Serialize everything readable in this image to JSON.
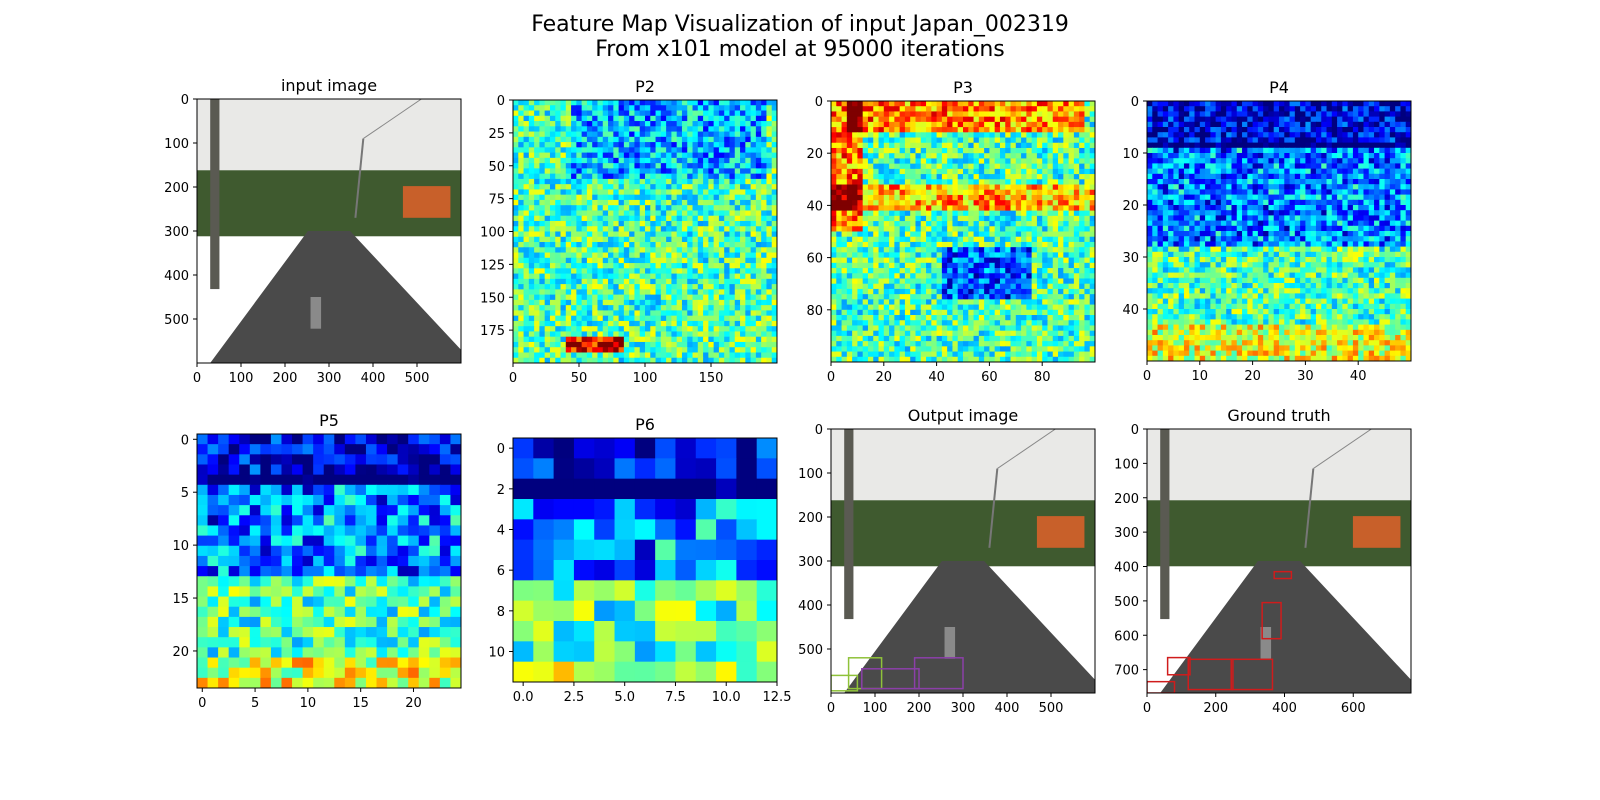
{
  "figure": {
    "title_line1": "Feature Map Visualization of input Japan_002319",
    "title_line2": "From x101 model at 95000 iterations"
  },
  "colors": {
    "jet": [
      "#00007f",
      "#0000ff",
      "#007fff",
      "#00ffff",
      "#7fff7f",
      "#ffff00",
      "#ff7f00",
      "#ff0000",
      "#7f0000"
    ],
    "sky": "#e9e9e7",
    "hill": "#3f5a2f",
    "road": "#4a4a4a",
    "house": "#c8602a",
    "box_green": "#8fc23a",
    "box_purple": "#8b3fa8",
    "box_red": "#d01c1c"
  },
  "chart_data": [
    {
      "id": "input",
      "type": "image",
      "title": "input image",
      "image_desc": "road photo",
      "xlim": [
        0,
        600
      ],
      "ylim": [
        600,
        0
      ],
      "xticks": [
        0,
        100,
        200,
        300,
        400,
        500
      ],
      "yticks": [
        0,
        100,
        200,
        300,
        400,
        500
      ]
    },
    {
      "id": "p2",
      "type": "heatmap",
      "title": "P2",
      "grid": 50,
      "xlim": [
        0,
        200
      ],
      "ylim": [
        200,
        0
      ],
      "xticks": [
        0,
        50,
        100,
        150
      ],
      "yticks": [
        0,
        25,
        50,
        75,
        100,
        125,
        150,
        175
      ],
      "seed": 2
    },
    {
      "id": "p3",
      "type": "heatmap",
      "title": "P3",
      "grid": 50,
      "xlim": [
        0,
        100
      ],
      "ylim": [
        100,
        0
      ],
      "xticks": [
        0,
        20,
        40,
        60,
        80
      ],
      "yticks": [
        0,
        20,
        40,
        60,
        80
      ],
      "seed": 3
    },
    {
      "id": "p4",
      "type": "heatmap",
      "title": "P4",
      "grid": 50,
      "xlim": [
        0,
        50
      ],
      "ylim": [
        50,
        0
      ],
      "xticks": [
        0,
        10,
        20,
        30,
        40
      ],
      "yticks": [
        0,
        10,
        20,
        30,
        40
      ],
      "seed": 4
    },
    {
      "id": "p5",
      "type": "heatmap",
      "title": "P5",
      "grid": 25,
      "xlim": [
        -0.5,
        24.5
      ],
      "ylim": [
        23.5,
        -0.5
      ],
      "xticks": [
        0,
        5,
        10,
        15,
        20
      ],
      "yticks": [
        0,
        5,
        10,
        15,
        20
      ],
      "seed": 5
    },
    {
      "id": "p6",
      "type": "heatmap",
      "title": "P6",
      "grid": 13,
      "rows": 12,
      "xlim": [
        -0.5,
        12.5
      ],
      "ylim": [
        11.5,
        -0.5
      ],
      "xticks": [
        0.0,
        2.5,
        5.0,
        7.5,
        10.0,
        12.5
      ],
      "xtick_labels": [
        "0.0",
        "2.5",
        "5.0",
        "7.5",
        "10.0",
        "12.5"
      ],
      "yticks": [
        0,
        2,
        4,
        6,
        8,
        10
      ],
      "seed": 6
    },
    {
      "id": "output",
      "type": "image",
      "title": "Output image",
      "image_desc": "road photo with predicted boxes",
      "xlim": [
        0,
        600
      ],
      "ylim": [
        600,
        0
      ],
      "xticks": [
        0,
        100,
        200,
        300,
        400,
        500
      ],
      "yticks": [
        0,
        100,
        200,
        300,
        400,
        500
      ],
      "boxes": [
        {
          "x0": 40,
          "y0": 520,
          "x1": 115,
          "y1": 590,
          "color": "box_green"
        },
        {
          "x0": 70,
          "y0": 545,
          "x1": 200,
          "y1": 590,
          "color": "box_purple"
        },
        {
          "x0": 190,
          "y0": 520,
          "x1": 300,
          "y1": 590,
          "color": "box_purple"
        },
        {
          "x0": 0,
          "y0": 560,
          "x1": 60,
          "y1": 595,
          "color": "box_green"
        }
      ]
    },
    {
      "id": "gt",
      "type": "image",
      "title": "Ground truth",
      "image_desc": "road photo with ground truth boxes",
      "xlim": [
        0,
        768
      ],
      "ylim": [
        768,
        0
      ],
      "xticks": [
        0,
        200,
        400,
        600
      ],
      "yticks": [
        100,
        200,
        300,
        400,
        500,
        600,
        700
      ],
      "yticks_zero": true,
      "boxes": [
        {
          "x0": 370,
          "y0": 415,
          "x1": 420,
          "y1": 435,
          "color": "box_red"
        },
        {
          "x0": 335,
          "y0": 505,
          "x1": 390,
          "y1": 610,
          "color": "box_red"
        },
        {
          "x0": 60,
          "y0": 665,
          "x1": 125,
          "y1": 715,
          "color": "box_red"
        },
        {
          "x0": 120,
          "y0": 670,
          "x1": 250,
          "y1": 758,
          "color": "box_red"
        },
        {
          "x0": 245,
          "y0": 670,
          "x1": 365,
          "y1": 758,
          "color": "box_red"
        },
        {
          "x0": 0,
          "y0": 735,
          "x1": 80,
          "y1": 768,
          "color": "box_red"
        }
      ]
    }
  ]
}
